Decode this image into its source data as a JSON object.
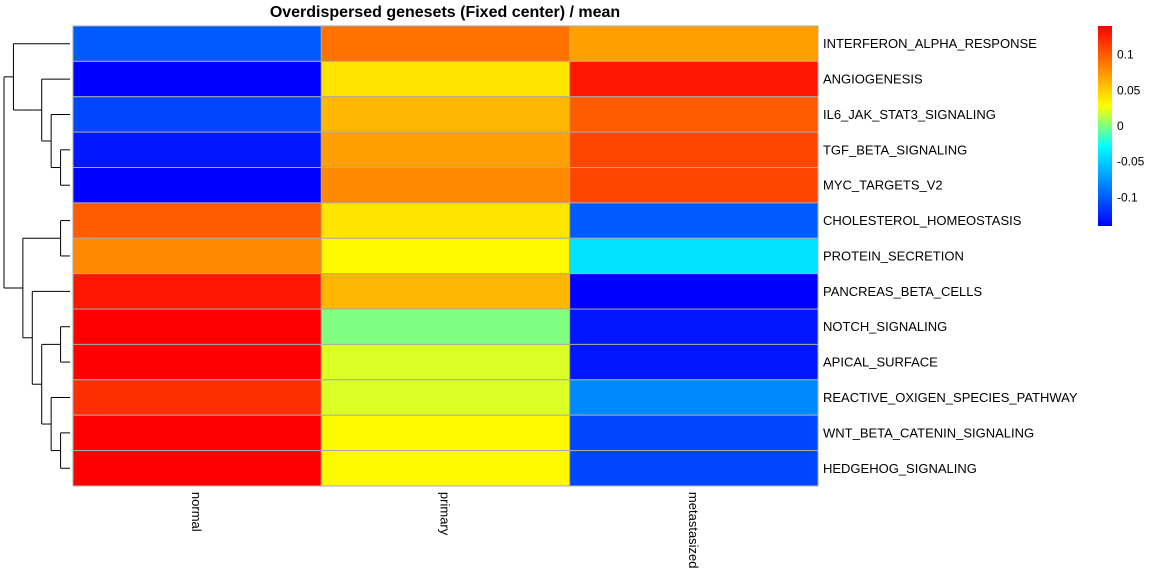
{
  "chart_data": {
    "type": "heatmap",
    "title": "Overdispersed genesets (Fixed center) / mean",
    "columns": [
      "normal",
      "primary",
      "metastasized"
    ],
    "rows": [
      "INTERFERON_ALPHA_RESPONSE",
      "ANGIOGENESIS",
      "IL6_JAK_STAT3_SIGNALING",
      "TGF_BETA_SIGNALING",
      "MYC_TARGETS_V2",
      "CHOLESTEROL_HOMEOSTASIS",
      "PROTEIN_SECRETION",
      "PANCREAS_BETA_CELLS",
      "NOTCH_SIGNALING",
      "APICAL_SURFACE",
      "REACTIVE_OXIGEN_SPECIES_PATHWAY",
      "WNT_BETA_CATENIN_SIGNALING",
      "HEDGEHOG_SIGNALING"
    ],
    "values": [
      [
        -0.1,
        0.09,
        0.07
      ],
      [
        -0.14,
        0.04,
        0.13
      ],
      [
        -0.11,
        0.06,
        0.1
      ],
      [
        -0.13,
        0.07,
        0.11
      ],
      [
        -0.14,
        0.08,
        0.11
      ],
      [
        0.1,
        0.04,
        -0.1
      ],
      [
        0.08,
        0.03,
        -0.04
      ],
      [
        0.13,
        0.06,
        -0.14
      ],
      [
        0.14,
        0.0,
        -0.13
      ],
      [
        0.14,
        0.02,
        -0.13
      ],
      [
        0.12,
        0.02,
        -0.08
      ],
      [
        0.14,
        0.03,
        -0.11
      ],
      [
        0.14,
        0.03,
        -0.11
      ]
    ],
    "color_scale": {
      "min": -0.14,
      "max": 0.14,
      "stops": [
        "#0000ff",
        "#0080ff",
        "#00ffff",
        "#ffff00",
        "#ff8000",
        "#ff0000"
      ],
      "ticks": [
        "0.1",
        "0.05",
        "0",
        "-0.05",
        "-0.1"
      ],
      "tick_values": [
        0.1,
        0.05,
        0,
        -0.05,
        -0.1
      ]
    },
    "grid_color": "#aaaaaa",
    "row_dendrogram": true
  }
}
